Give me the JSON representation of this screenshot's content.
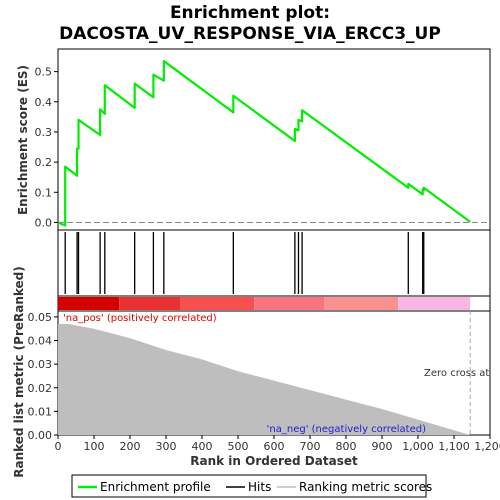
{
  "chart_data": {
    "type": "line",
    "title_line1": "Enrichment plot:",
    "title_line2": "DACOSTA_UV_RESPONSE_VIA_ERCC3_UP",
    "ylabel_top": "Enrichment score (ES)",
    "ylabel_bottom": "Ranked list metric (PreRanked)",
    "xlabel": "Rank in Ordered Dataset",
    "xlim": [
      0,
      1200
    ],
    "xticks": [
      0,
      100,
      200,
      300,
      400,
      500,
      600,
      700,
      800,
      900,
      1000,
      1100,
      1200
    ],
    "xtick_labels": [
      "0",
      "100",
      "200",
      "300",
      "400",
      "500",
      "600",
      "700",
      "800",
      "900",
      "1,000",
      "1,100",
      "1,200"
    ],
    "es_ylim": [
      -0.025,
      0.575
    ],
    "es_yticks": [
      0.0,
      0.1,
      0.2,
      0.3,
      0.4,
      0.5
    ],
    "es_ytick_labels": [
      "0.0",
      "0.1",
      "0.2",
      "0.3",
      "0.4",
      "0.5"
    ],
    "metric_ylim": [
      0,
      0.0525
    ],
    "metric_yticks": [
      0.0,
      0.01,
      0.02,
      0.03,
      0.04,
      0.05
    ],
    "metric_ytick_labels": [
      "0.00",
      "0.01",
      "0.02",
      "0.03",
      "0.04",
      "0.05"
    ],
    "n_genes": 1145,
    "zero_cross_rank": 1145,
    "zero_cross_label": "Zero cross at",
    "pos_label": "'na_pos' (positively correlated)",
    "neg_label": "'na_neg' (negatively correlated)",
    "hits": [
      20,
      53,
      57,
      117,
      130,
      213,
      265,
      294,
      487,
      658,
      668,
      678,
      973,
      1013,
      1016
    ],
    "es_profile": {
      "x": [
        0,
        20,
        20,
        53,
        53,
        57,
        57,
        117,
        117,
        130,
        130,
        213,
        213,
        265,
        265,
        294,
        294,
        487,
        487,
        658,
        658,
        668,
        668,
        678,
        678,
        973,
        973,
        1013,
        1013,
        1016,
        1016,
        1145
      ],
      "y": [
        0.0,
        -0.01,
        0.185,
        0.155,
        0.245,
        0.245,
        0.34,
        0.29,
        0.375,
        0.36,
        0.455,
        0.38,
        0.46,
        0.415,
        0.49,
        0.47,
        0.535,
        0.365,
        0.42,
        0.27,
        0.31,
        0.305,
        0.34,
        0.335,
        0.372,
        0.115,
        0.128,
        0.093,
        0.11,
        0.107,
        0.115,
        0.002
      ]
    },
    "metric_profile": {
      "x": [
        0,
        30,
        100,
        200,
        300,
        400,
        500,
        600,
        700,
        800,
        900,
        1000,
        1100,
        1145
      ],
      "y": [
        0.047,
        0.047,
        0.045,
        0.041,
        0.036,
        0.032,
        0.027,
        0.023,
        0.019,
        0.015,
        0.011,
        0.0065,
        0.002,
        0.0
      ]
    },
    "heat_segments": [
      {
        "from": 0,
        "to": 170,
        "color": "#d40000"
      },
      {
        "from": 170,
        "to": 340,
        "color": "#e83232"
      },
      {
        "from": 340,
        "to": 545,
        "color": "#f85050"
      },
      {
        "from": 545,
        "to": 740,
        "color": "#fa7380"
      },
      {
        "from": 740,
        "to": 945,
        "color": "#fa9090"
      },
      {
        "from": 945,
        "to": 1145,
        "color": "#f8b6e6"
      }
    ],
    "legend": [
      "Enrichment profile",
      "Hits",
      "Ranking metric scores"
    ],
    "colors": {
      "es_line": "#00ee00",
      "hits": "#000000",
      "metric_fill": "#bebebe",
      "pos_text": "#e00000",
      "neg_text": "#2020d0",
      "zero_line": "#aaaaaa"
    }
  }
}
